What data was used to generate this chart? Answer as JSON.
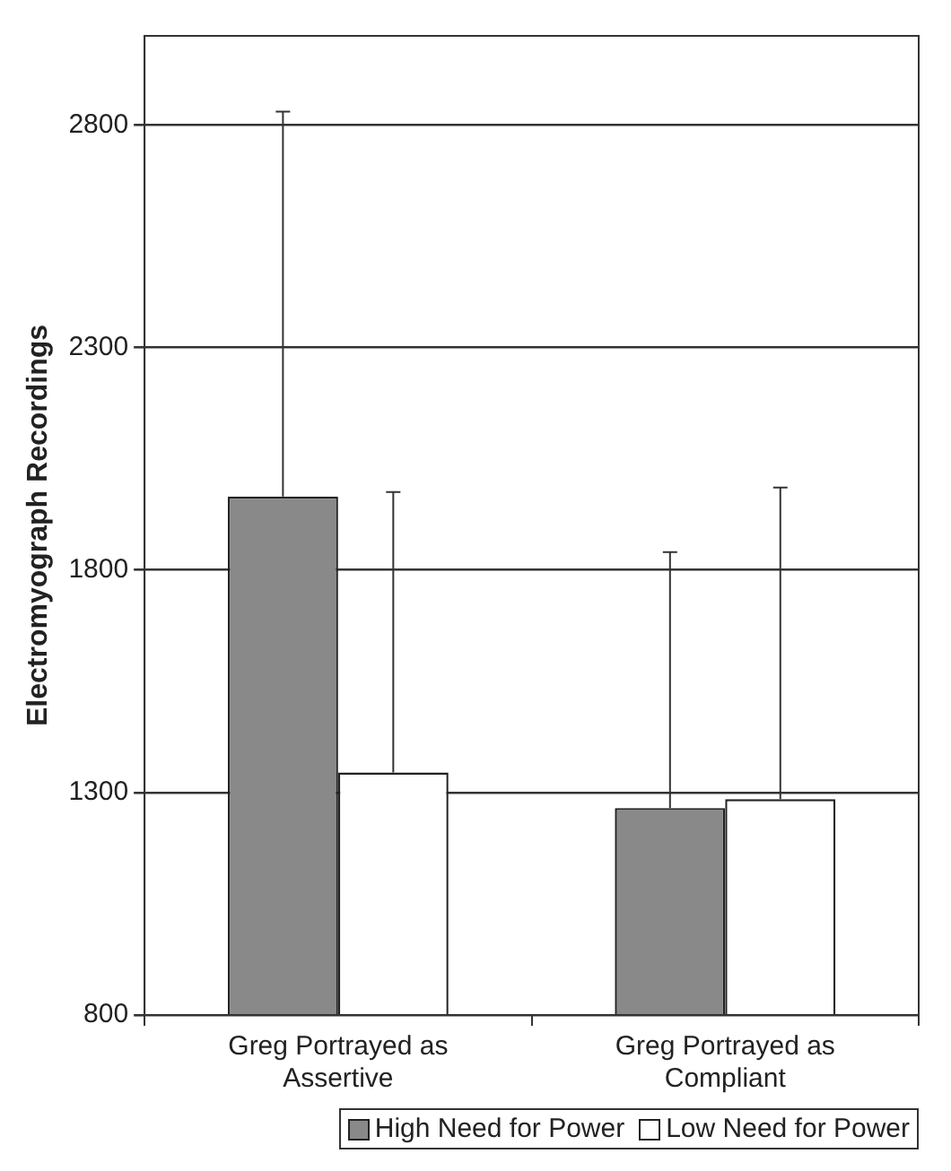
{
  "chart_data": {
    "type": "bar",
    "ylabel": "Electromyograph Recordings",
    "categories": [
      "Greg Portrayed as Assertive",
      "Greg Portrayed as Compliant"
    ],
    "series": [
      {
        "name": "High Need for Power",
        "color": "#898989",
        "values": [
          1965,
          1265
        ],
        "errors": [
          [
            1965,
            2830
          ],
          [
            1265,
            1840
          ]
        ]
      },
      {
        "name": "Low Need for Power",
        "color": "#ffffff",
        "values": [
          1345,
          1285
        ],
        "errors": [
          [
            1345,
            1975
          ],
          [
            1285,
            1985
          ]
        ]
      }
    ],
    "ylim": [
      800,
      3000
    ],
    "yticks": [
      800,
      1300,
      1800,
      2300,
      2800
    ],
    "grid": "y",
    "legend": "bottom"
  }
}
